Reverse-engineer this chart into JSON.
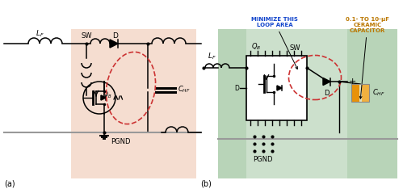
{
  "bg_color": "#ffffff",
  "left_panel_bg": "#f5ddd0",
  "right_panel_bg": "#cce0cc",
  "right_panel_dark": "#b8d4b8",
  "dashed_color": "#cc3333",
  "orange1": "#e8920a",
  "orange2": "#f0b040",
  "gray_wire": "#999999",
  "label_a": "(a)",
  "label_b": "(b)",
  "minimize_text": "MINIMIZE THIS\nLOOP AREA",
  "capacitor_text": "0.1- TO 10-μF\nCERAMIC\nCAPACITOR"
}
